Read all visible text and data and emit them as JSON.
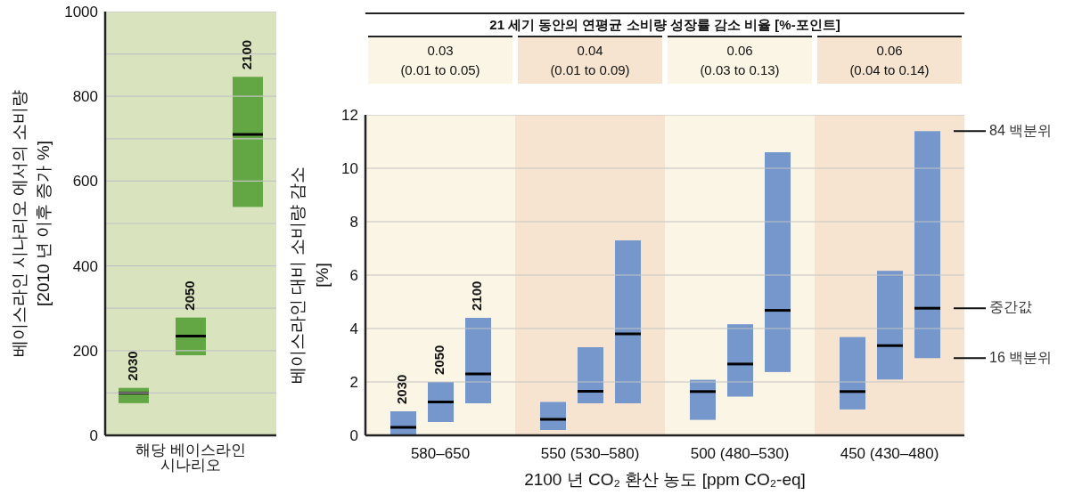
{
  "chart_data": [
    {
      "type": "box",
      "categories": [
        null,
        null,
        null
      ],
      "xlabel": "해당 베이스라인 시나리오",
      "annotations": [
        "2030",
        "2050",
        "2100"
      ],
      "ylabel": "베이스라인 시나리오 에서의 소비량\n[2010 년 이후 증가 %]",
      "ylim": [
        0,
        1000
      ],
      "yticks": [
        0,
        {
          "value": 100,
          "label": null
        },
        200,
        {
          "value": 300,
          "label": null
        },
        400,
        {
          "value": 500,
          "label": null
        },
        600,
        {
          "value": 700,
          "label": null
        },
        800,
        {
          "value": 900,
          "label": null
        },
        1000
      ],
      "grid": "y",
      "legend": false,
      "bands": [
        {
          "axis": "y",
          "from": 0,
          "to": 1000,
          "color": "#d9e4bf"
        }
      ],
      "series": [
        {
          "color": "#62a744",
          "boxes": [
            {
              "low": 76,
              "q1": 76,
              "median": 100,
              "q3": 112,
              "high": 112
            },
            {
              "low": 189,
              "q1": 189,
              "median": 234,
              "q3": 278,
              "high": 278
            },
            {
              "low": 539,
              "q1": 539,
              "median": 710,
              "q3": 846,
              "high": 846
            }
          ]
        }
      ]
    },
    {
      "type": "box",
      "title": "21 세기 동안의 연평균 소비량 성장률 감소 비율 [%-포인트]",
      "categories": [
        "580–650",
        "550 (530–580)",
        "500 (480–530)",
        "450 (430–480)"
      ],
      "xlabel": "2100 년 CO₂ 환산 농도 [ppm CO₂-eq]",
      "ylabel": "베이스라인 대비 소비량 감소\n[%]",
      "ylim": [
        0,
        12
      ],
      "yticks": [
        0,
        2,
        4,
        6,
        8,
        10,
        12
      ],
      "grid": "y",
      "legend": false,
      "bands": [
        {
          "axis": "x",
          "from": "580–650",
          "to": "580–650",
          "color": "#faf5e4"
        },
        {
          "axis": "x",
          "from": "550 (530–580)",
          "to": "550 (530–580)",
          "color": "#f6e4d0"
        },
        {
          "axis": "x",
          "from": "500 (480–530)",
          "to": "500 (480–530)",
          "color": "#faf5e4"
        },
        {
          "axis": "x",
          "from": "450 (430–480)",
          "to": "450 (430–480)",
          "color": "#f6e4d0"
        }
      ],
      "annotations": [
        "0.03\n(0.01 to 0.05)",
        "0.04\n(0.01 to 0.09)",
        "0.06\n(0.03 to 0.13)",
        "0.06\n(0.04 to 0.14)",
        "84 백분위",
        "중간값",
        "16 백분위"
      ],
      "series": [
        {
          "name": "2030",
          "color": "#7597cb",
          "boxes": [
            {
              "low": 0,
              "q1": 0,
              "median": 0.3,
              "q3": 0.9,
              "high": 0.9
            },
            {
              "low": 0.2,
              "q1": 0.2,
              "median": 0.6,
              "q3": 1.25,
              "high": 1.25
            },
            {
              "low": 0.58,
              "q1": 0.58,
              "median": 1.64,
              "q3": 2.08,
              "high": 2.08
            },
            {
              "low": 0.97,
              "q1": 0.97,
              "median": 1.64,
              "q3": 3.68,
              "high": 3.68
            }
          ]
        },
        {
          "name": "2050",
          "color": "#7597cb",
          "boxes": [
            {
              "low": 0.5,
              "q1": 0.5,
              "median": 1.25,
              "q3": 2.0,
              "high": 2.0
            },
            {
              "low": 1.2,
              "q1": 1.2,
              "median": 1.65,
              "q3": 3.3,
              "high": 3.3
            },
            {
              "low": 1.45,
              "q1": 1.45,
              "median": 2.67,
              "q3": 4.16,
              "high": 4.16
            },
            {
              "low": 2.09,
              "q1": 2.09,
              "median": 3.36,
              "q3": 6.16,
              "high": 6.16
            }
          ]
        },
        {
          "name": "2100",
          "color": "#7597cb",
          "boxes": [
            {
              "low": 1.2,
              "q1": 1.2,
              "median": 2.3,
              "q3": 4.4,
              "high": 4.4
            },
            {
              "low": 1.2,
              "q1": 1.2,
              "median": 3.8,
              "q3": 7.3,
              "high": 7.3
            },
            {
              "low": 2.37,
              "q1": 2.37,
              "median": 4.68,
              "q3": 10.6,
              "high": 10.6
            },
            {
              "low": 2.89,
              "q1": 2.89,
              "median": 4.76,
              "q3": 11.39,
              "high": 11.39
            }
          ]
        }
      ]
    }
  ]
}
